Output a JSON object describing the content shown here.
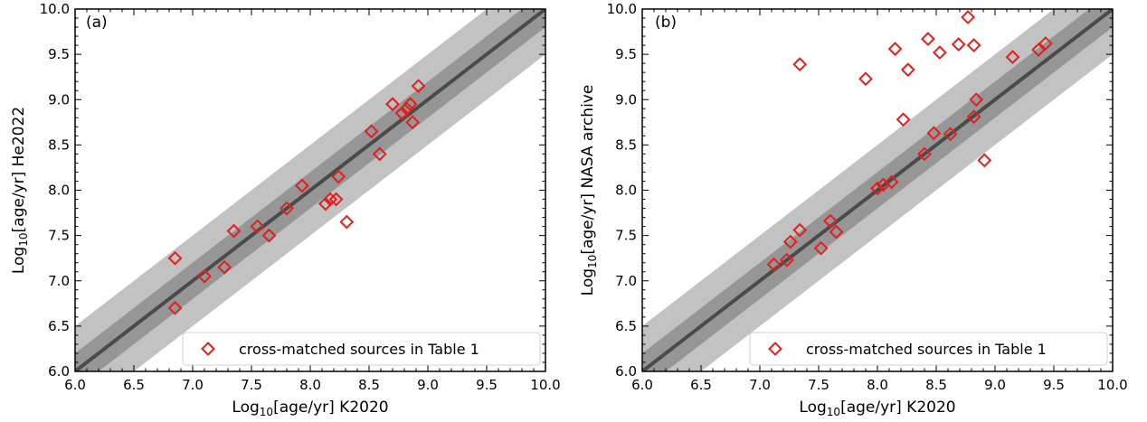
{
  "chart_data": [
    {
      "type": "scatter",
      "panel_label": "(a)",
      "xlabel_prefix": "Log",
      "xlabel_sub": "10",
      "xlabel_suffix": "[age/yr] K2020",
      "ylabel_prefix": "Log",
      "ylabel_sub": "10",
      "ylabel_suffix": "[age/yr] He2022",
      "xlim": [
        6.0,
        10.0
      ],
      "ylim": [
        6.0,
        10.0
      ],
      "xticks": [
        "6.0",
        "6.5",
        "7.0",
        "7.5",
        "8.0",
        "8.5",
        "9.0",
        "9.5",
        "10.0"
      ],
      "yticks": [
        "6.0",
        "6.5",
        "7.0",
        "7.5",
        "8.0",
        "8.5",
        "9.0",
        "9.5",
        "10.0"
      ],
      "grid": false,
      "legend_position": "lower-right",
      "bands": [
        {
          "half_width": 0.5,
          "color": "#c2c2c2"
        },
        {
          "half_width": 0.2,
          "color": "#969696"
        }
      ],
      "reference_line": {
        "slope": 1,
        "intercept": 0,
        "color": "#4a4a4a"
      },
      "series": [
        {
          "name": "cross-matched sources in Table 1",
          "marker": "diamond-open",
          "color": "#e02020",
          "x": [
            6.85,
            6.85,
            7.1,
            7.27,
            7.35,
            7.55,
            7.65,
            7.8,
            7.93,
            8.13,
            8.17,
            8.22,
            8.24,
            8.31,
            8.52,
            8.59,
            8.7,
            8.78,
            8.82,
            8.85,
            8.87,
            8.92
          ],
          "y": [
            7.25,
            6.7,
            7.05,
            7.15,
            7.55,
            7.6,
            7.5,
            7.8,
            8.05,
            7.85,
            7.9,
            7.9,
            8.15,
            7.65,
            8.65,
            8.4,
            8.95,
            8.85,
            8.9,
            8.95,
            8.75,
            9.15
          ]
        }
      ]
    },
    {
      "type": "scatter",
      "panel_label": "(b)",
      "xlabel_prefix": "Log",
      "xlabel_sub": "10",
      "xlabel_suffix": "[age/yr] K2020",
      "ylabel_prefix": "Log",
      "ylabel_sub": "10",
      "ylabel_suffix": "[age/yr] NASA archive",
      "xlim": [
        6.0,
        10.0
      ],
      "ylim": [
        6.0,
        10.0
      ],
      "xticks": [
        "6.0",
        "6.5",
        "7.0",
        "7.5",
        "8.0",
        "8.5",
        "9.0",
        "9.5",
        "10.0"
      ],
      "yticks": [
        "6.0",
        "6.5",
        "7.0",
        "7.5",
        "8.0",
        "8.5",
        "9.0",
        "9.5",
        "10.0"
      ],
      "grid": false,
      "legend_position": "lower-right",
      "bands": [
        {
          "half_width": 0.5,
          "color": "#c2c2c2"
        },
        {
          "half_width": 0.2,
          "color": "#969696"
        }
      ],
      "reference_line": {
        "slope": 1,
        "intercept": 0,
        "color": "#4a4a4a"
      },
      "series": [
        {
          "name": "cross-matched sources in Table 1",
          "marker": "diamond-open",
          "color": "#e02020",
          "x": [
            7.12,
            7.23,
            7.26,
            7.34,
            7.52,
            7.6,
            7.65,
            8.0,
            8.05,
            8.12,
            8.4,
            8.48,
            8.62,
            8.82,
            8.84,
            8.91,
            7.34,
            7.9,
            8.15,
            8.22,
            8.26,
            8.43,
            8.53,
            8.69,
            8.77,
            8.82,
            9.15,
            9.37,
            9.43
          ],
          "y": [
            7.18,
            7.23,
            7.43,
            7.56,
            7.36,
            7.66,
            7.54,
            8.02,
            8.06,
            8.09,
            8.4,
            8.63,
            8.62,
            8.81,
            9.0,
            8.33,
            9.39,
            9.23,
            9.56,
            8.78,
            9.33,
            9.67,
            9.52,
            9.61,
            9.91,
            9.6,
            9.47,
            9.55,
            9.62
          ]
        }
      ]
    }
  ]
}
